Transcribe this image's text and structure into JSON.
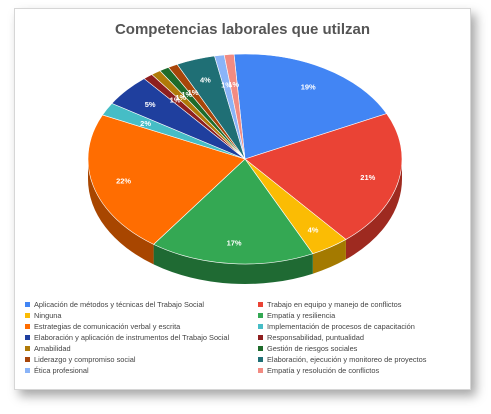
{
  "chart_data": {
    "type": "pie",
    "title": "Competencias laborales que utilzan",
    "slices": [
      {
        "name": "Aplicación de métodos y técnicas del Trabajo Social",
        "value": 19,
        "label": "19%",
        "color": "#4285f4",
        "side": "#2a5ab0"
      },
      {
        "name": "Trabajo en equipo y manejo de conflictos",
        "value": 21,
        "label": "21%",
        "color": "#ea4335",
        "side": "#9e2a20"
      },
      {
        "name": "Ninguna",
        "value": 4,
        "label": "4%",
        "color": "#fbbc04",
        "side": "#a47a00"
      },
      {
        "name": "Empatía y resiliencia",
        "value": 17,
        "label": "17%",
        "color": "#34a853",
        "side": "#1f6a33"
      },
      {
        "name": "Estrategias de comunicación verbal y escrita",
        "value": 22,
        "label": "22%",
        "color": "#ff6d01",
        "side": "#a84600"
      },
      {
        "name": "Implementación de procesos de capacitación",
        "value": 2,
        "label": "2%",
        "color": "#46bdc6",
        "side": "#2a8088"
      },
      {
        "name": "Elaboración y aplicación de instrumentos del Trabajo Social",
        "value": 5,
        "label": "5%",
        "color": "#1f3f9e",
        "side": "#112464"
      },
      {
        "name": "Responsabilidad, puntualidad",
        "value": 1,
        "label": "1%",
        "color": "#8e1f1f",
        "side": "#5a1212"
      },
      {
        "name": "Amabilidad",
        "value": 1,
        "label": "1%",
        "color": "#b07a08",
        "side": "#6f4d04"
      },
      {
        "name": "Gestión de riesgos sociales",
        "value": 1,
        "label": "1%",
        "color": "#1e6b2b",
        "side": "#10421a"
      },
      {
        "name": "Liderazgo y compromiso social",
        "value": 1,
        "label": "1%",
        "color": "#a8460a",
        "side": "#6b2c05"
      },
      {
        "name": "Elaboración, ejecución y monitoreo de proyectos",
        "value": 4,
        "label": "4%",
        "color": "#1f6f75",
        "side": "#12464a"
      },
      {
        "name": "Ética profesional",
        "value": 1,
        "label": "1%",
        "color": "#8ab4f8",
        "side": "#5a7fb8"
      },
      {
        "name": "Empatía y resolución de conflictos",
        "value": 1,
        "label": "1%",
        "color": "#f28b82",
        "side": "#b5605a"
      }
    ],
    "legend_position": "bottom"
  }
}
